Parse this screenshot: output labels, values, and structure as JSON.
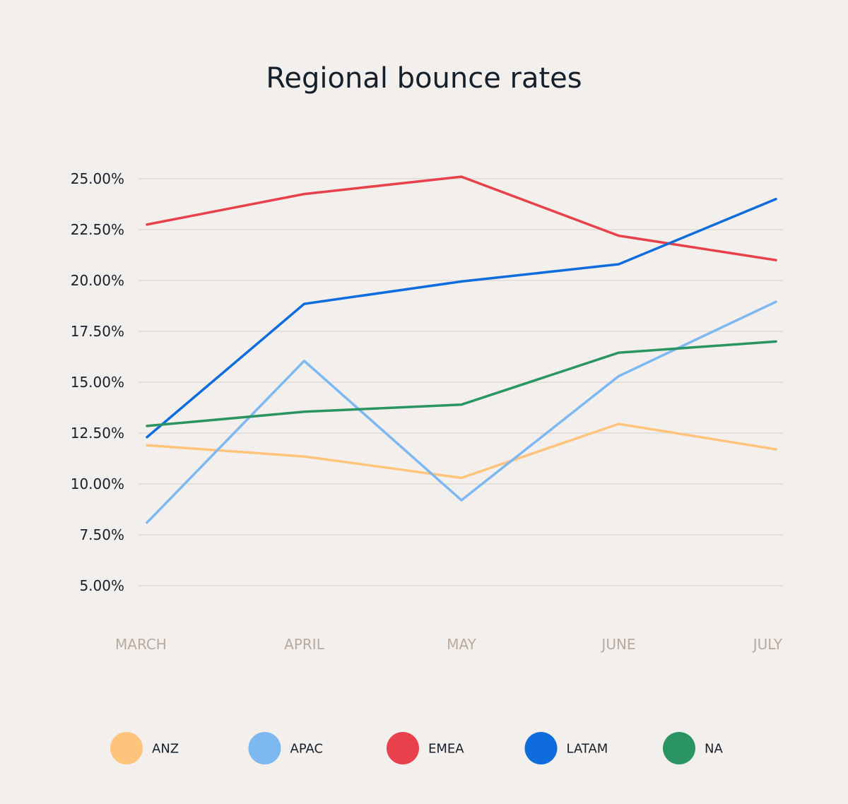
{
  "chart_data": {
    "type": "line",
    "title": "Regional bounce rates",
    "xlabel": "",
    "ylabel": "",
    "categories": [
      "MARCH",
      "APRIL",
      "MAY",
      "JUNE",
      "JULY"
    ],
    "ylim": [
      5,
      25
    ],
    "yticks": [
      5,
      7.5,
      10,
      12.5,
      15,
      17.5,
      20,
      22.5,
      25
    ],
    "ytick_labels": [
      "5.00%",
      "7.50%",
      "10.00%",
      "12.50%",
      "15.00%",
      "17.50%",
      "20.00%",
      "22.50%",
      "25.00%"
    ],
    "grid": true,
    "legend_position": "bottom",
    "series": [
      {
        "name": "ANZ",
        "color": "#fec47c",
        "values": [
          11.9,
          11.35,
          10.3,
          12.95,
          11.7
        ]
      },
      {
        "name": "APAC",
        "color": "#7db8f1",
        "values": [
          8.1,
          16.05,
          9.2,
          15.3,
          18.95
        ]
      },
      {
        "name": "EMEA",
        "color": "#e8414b",
        "values": [
          22.75,
          24.25,
          25.1,
          22.2,
          21.0
        ]
      },
      {
        "name": "LATAM",
        "color": "#0e6cdc",
        "values": [
          12.3,
          18.85,
          19.95,
          20.8,
          24.0
        ]
      },
      {
        "name": "NA",
        "color": "#2a9563",
        "values": [
          12.85,
          13.55,
          13.9,
          16.45,
          17.0
        ]
      }
    ]
  }
}
